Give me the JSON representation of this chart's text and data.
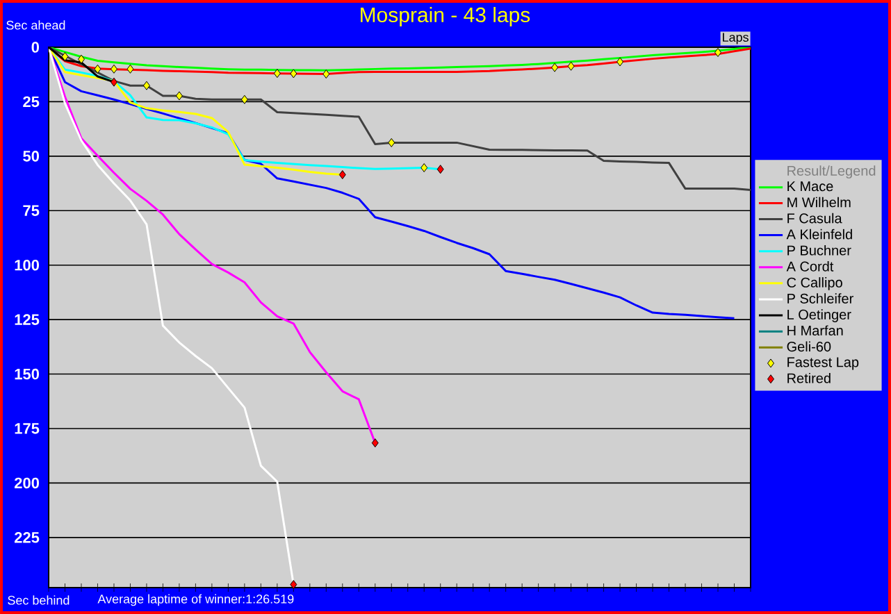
{
  "chart_data": {
    "type": "line",
    "title": "Mosprain - 43 laps",
    "xlabel": "Laps",
    "ylabel": "Sec ahead",
    "legend_title": "Result/Legend",
    "annotations": [
      "Sec behind",
      "Average laptime of winner:1:26.519"
    ],
    "categories": [
      null,
      null,
      null,
      null,
      null,
      null,
      null,
      null,
      null,
      null,
      null,
      null,
      null,
      null,
      null,
      null,
      null,
      null,
      null,
      null,
      null,
      null,
      null,
      null,
      null,
      null,
      null,
      null,
      null,
      null,
      null,
      null,
      null,
      null,
      null,
      null,
      null,
      null,
      null,
      null,
      null,
      null,
      null,
      null
    ],
    "ylim": [
      248,
      0
    ],
    "yticks": [
      0,
      25,
      50,
      75,
      100,
      125,
      150,
      175,
      200,
      225
    ],
    "grid": "y",
    "legend": "right",
    "line_style": "solid",
    "series": [
      {
        "name": "K Mace",
        "color": "#00ff00",
        "values": [
          0,
          2.2,
          4.4,
          6.2,
          6.9,
          7.6,
          8.3,
          8.7,
          9.1,
          9.4,
          9.8,
          10.1,
          10.3,
          10.3,
          10.4,
          10.5,
          10.5,
          10.6,
          10.4,
          10.2,
          10,
          9.8,
          9.7,
          9.5,
          9.3,
          9.1,
          8.9,
          8.7,
          8.4,
          8.1,
          7.7,
          7.2,
          6.6,
          6.1,
          5.5,
          4.9,
          4.3,
          3.7,
          3.2,
          2.7,
          2.2,
          1.6,
          0.8,
          0
        ]
      },
      {
        "name": "M Wilhelm",
        "color": "#ff0000",
        "values": [
          0,
          6.4,
          8.7,
          9.8,
          10.1,
          10.3,
          10.5,
          10.8,
          11,
          11.2,
          11.4,
          11.7,
          11.8,
          11.9,
          12,
          12.1,
          12.2,
          12.3,
          11.8,
          11.4,
          11.3,
          11.3,
          11.3,
          11.3,
          11.3,
          11.3,
          11.1,
          10.9,
          10.5,
          10.2,
          9.8,
          9.3,
          8.7,
          8.2,
          7.5,
          6.7,
          6,
          5.3,
          4.7,
          4.2,
          3.7,
          3.1,
          1.8,
          0.6
        ]
      },
      {
        "name": "F Casula",
        "color": "#404040",
        "values": [
          0,
          3.9,
          7.8,
          11.6,
          15.5,
          17.6,
          17.6,
          22.3,
          22.3,
          23.7,
          24,
          24,
          24,
          24,
          29.8,
          30.2,
          30.6,
          31,
          31.5,
          31.9,
          44.5,
          43.8,
          43.8,
          43.8,
          43.8,
          43.8,
          45.4,
          47,
          47.1,
          47.1,
          47.2,
          47.3,
          47.3,
          47.4,
          52.1,
          52.4,
          52.6,
          52.9,
          53.1,
          64.9,
          64.9,
          64.9,
          64.9,
          65.5
        ]
      },
      {
        "name": "A Kleinfeld",
        "color": "#0000ff",
        "values": [
          0,
          16,
          20.2,
          22.1,
          24,
          26.1,
          28.3,
          30.4,
          32.6,
          34.8,
          37.1,
          39.5,
          51.7,
          53.5,
          60.2,
          61.6,
          63.1,
          64.6,
          66.8,
          69.6,
          78,
          80,
          82.1,
          84.3,
          87.1,
          89.8,
          92.2,
          95,
          102.7,
          104,
          105.4,
          106.7,
          108.6,
          110.6,
          112.6,
          114.8,
          118.5,
          121.8,
          122.4,
          122.8,
          123.4,
          123.9,
          124.4,
          null
        ]
      },
      {
        "name": "P Buchner",
        "color": "#00ffff",
        "values": [
          0,
          10.3,
          11.6,
          13.2,
          15.5,
          22,
          32.2,
          33.4,
          33.5,
          34.9,
          36.8,
          40,
          51.8,
          52.5,
          53.1,
          53.6,
          54.1,
          54.5,
          55,
          55.5,
          55.9,
          55.7,
          55.5,
          55.3,
          56,
          null,
          null,
          null,
          null,
          null,
          null,
          null,
          null,
          null,
          null,
          null,
          null,
          null,
          null,
          null,
          null,
          null,
          null,
          null
        ]
      },
      {
        "name": "A Cordt",
        "color": "#ff00ff",
        "values": [
          0,
          22.7,
          41.8,
          49.8,
          57.6,
          65,
          70.5,
          76.8,
          85.8,
          92.8,
          99.5,
          103.4,
          107.9,
          117.1,
          123.5,
          126.8,
          139.9,
          149.2,
          157.9,
          161.6,
          181.6,
          null,
          null,
          null,
          null,
          null,
          null,
          null,
          null,
          null,
          null,
          null,
          null,
          null,
          null,
          null,
          null,
          null,
          null,
          null,
          null,
          null,
          null,
          null
        ]
      },
      {
        "name": "C Callipo",
        "color": "#ffff00",
        "values": [
          0,
          11.4,
          12.8,
          14.1,
          15.5,
          25.4,
          28,
          29,
          29.7,
          30.6,
          32.5,
          38.9,
          53.9,
          54.6,
          55.3,
          56.2,
          57.2,
          58,
          58.5,
          null,
          null,
          null,
          null,
          null,
          null,
          null,
          null,
          null,
          null,
          null,
          null,
          null,
          null,
          null,
          null,
          null,
          null,
          null,
          null,
          null,
          null,
          null,
          null,
          null
        ]
      },
      {
        "name": "P Schleifer",
        "color": "#ffffff",
        "values": [
          0,
          25.8,
          42.8,
          54,
          62.5,
          70.3,
          81.3,
          127.8,
          135.5,
          141.7,
          147.3,
          156.4,
          165.4,
          192.1,
          199.4,
          246.6,
          null,
          null,
          null,
          null,
          null,
          null,
          null,
          null,
          null,
          null,
          null,
          null,
          null,
          null,
          null,
          null,
          null,
          null,
          null,
          null,
          null,
          null,
          null,
          null,
          null,
          null,
          null,
          null
        ]
      },
      {
        "name": "L Oetinger",
        "color": "#000000",
        "values": [
          0,
          6,
          7,
          13.4,
          16,
          null,
          null,
          null,
          null,
          null,
          null,
          null,
          null,
          null,
          null,
          null,
          null,
          null,
          null,
          null,
          null,
          null,
          null,
          null,
          null,
          null,
          null,
          null,
          null,
          null,
          null,
          null,
          null,
          null,
          null,
          null,
          null,
          null,
          null,
          null,
          null,
          null,
          null,
          null
        ]
      },
      {
        "name": "H Marfan",
        "color": "#008080",
        "values": [
          null,
          null,
          null,
          null,
          null,
          null,
          null,
          null,
          null,
          null,
          null,
          null,
          null,
          null,
          null,
          null,
          null,
          null,
          null,
          null,
          null,
          null,
          null,
          null,
          null,
          null,
          null,
          null,
          null,
          null,
          null,
          null,
          null,
          null,
          null,
          null,
          null,
          null,
          null,
          null,
          null,
          null,
          null,
          null
        ]
      },
      {
        "name": "Geli-60",
        "color": "#808000",
        "values": [
          null,
          null,
          null,
          null,
          null,
          null,
          null,
          null,
          null,
          null,
          null,
          null,
          null,
          null,
          null,
          null,
          null,
          null,
          null,
          null,
          null,
          null,
          null,
          null,
          null,
          null,
          null,
          null,
          null,
          null,
          null,
          null,
          null,
          null,
          null,
          null,
          null,
          null,
          null,
          null,
          null,
          null,
          null,
          null
        ]
      },
      {
        "name": "Fastest Lap",
        "type": "scatter",
        "marker": "diamond",
        "color": "#ffff00",
        "values": [
          null,
          4.3,
          5.5,
          10,
          10,
          10,
          17.6,
          null,
          22.3,
          null,
          null,
          null,
          24,
          null,
          12,
          12.1,
          null,
          12.3,
          null,
          null,
          null,
          43.8,
          null,
          55.3,
          null,
          null,
          null,
          null,
          null,
          null,
          null,
          9.3,
          8.7,
          null,
          null,
          6.7,
          null,
          null,
          null,
          null,
          null,
          2.4,
          null,
          null
        ]
      },
      {
        "name": "Retired",
        "type": "scatter",
        "marker": "diamond",
        "color": "#ff0000",
        "values": [
          null,
          null,
          null,
          null,
          16,
          null,
          null,
          null,
          null,
          null,
          null,
          null,
          null,
          null,
          null,
          246.6,
          null,
          null,
          58.5,
          null,
          181.6,
          null,
          null,
          null,
          56,
          null,
          null,
          null,
          null,
          null,
          null,
          null,
          null,
          null,
          null,
          null,
          null,
          null,
          null,
          null,
          null,
          null,
          null,
          null
        ]
      }
    ]
  }
}
